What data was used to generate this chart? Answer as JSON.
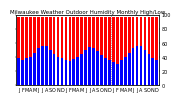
{
  "title": "Milwaukee Weather Outdoor Humidity Monthly High/Low",
  "background_color": "#ffffff",
  "ylim": [
    0,
    100
  ],
  "yticks": [
    0,
    20,
    40,
    60,
    80,
    100
  ],
  "months": [
    "J",
    "F",
    "M",
    "A",
    "M",
    "J",
    "J",
    "A",
    "S",
    "O",
    "N",
    "D",
    "J",
    "F",
    "M",
    "A",
    "M",
    "J",
    "J",
    "A",
    "S",
    "O",
    "N",
    "D",
    "J",
    "F",
    "M",
    "A",
    "M",
    "J",
    "J",
    "A",
    "S",
    "O",
    "N",
    "D"
  ],
  "highs": [
    97,
    96,
    97,
    97,
    96,
    97,
    97,
    97,
    96,
    97,
    97,
    97,
    97,
    97,
    97,
    97,
    97,
    97,
    97,
    97,
    97,
    97,
    97,
    97,
    97,
    97,
    97,
    97,
    97,
    97,
    97,
    97,
    97,
    97,
    97,
    97
  ],
  "lows": [
    38,
    36,
    38,
    40,
    45,
    52,
    56,
    55,
    50,
    44,
    40,
    38,
    36,
    34,
    37,
    40,
    44,
    50,
    54,
    53,
    48,
    42,
    38,
    36,
    32,
    30,
    36,
    40,
    45,
    52,
    56,
    55,
    50,
    44,
    38,
    36
  ],
  "high_color": "#ff0000",
  "low_color": "#0000ff",
  "tick_fontsize": 3.5,
  "title_fontsize": 4.0,
  "dotted_separator": 24,
  "bar_width": 0.7,
  "grid_color": "#cccccc"
}
